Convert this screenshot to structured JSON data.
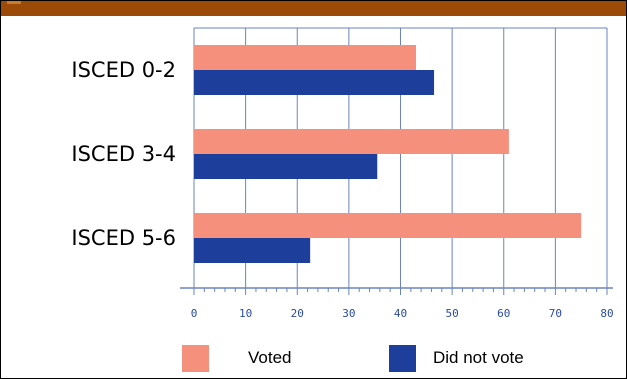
{
  "chart_data": {
    "type": "bar",
    "orientation": "horizontal",
    "categories": [
      "ISCED 0-2",
      "ISCED 3-4",
      "ISCED 5-6"
    ],
    "series": [
      {
        "name": "Voted",
        "values": [
          43,
          61,
          75
        ],
        "color": "#f4907c"
      },
      {
        "name": "Did not vote",
        "values": [
          46.5,
          35.5,
          22.5
        ],
        "color": "#1e3e9c"
      }
    ],
    "xlim": [
      0,
      80
    ],
    "x_ticks": [
      0,
      10,
      20,
      30,
      40,
      50,
      60,
      70,
      80
    ],
    "x_tick_color": "#2a4aa0",
    "grid": true,
    "grid_color": "#6b83c0",
    "legend_position": "bottom-center"
  },
  "colors": {
    "header_band": "#9c4a07"
  }
}
